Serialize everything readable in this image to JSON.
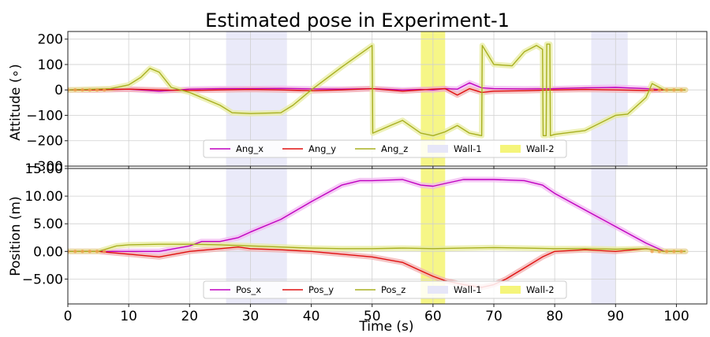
{
  "chart_data": [
    {
      "type": "line",
      "title": "Estimated pose in Experiment-1",
      "xlabel": "",
      "ylabel": "Attitude (∘)",
      "xlim": [
        0,
        105
      ],
      "ylim": [
        -300,
        230
      ],
      "xticks": [
        0,
        10,
        20,
        30,
        40,
        50,
        60,
        70,
        80,
        90,
        100
      ],
      "yticks": [
        200,
        100,
        0,
        -100,
        -200,
        -300
      ],
      "ytick_labels": [
        "200",
        "100",
        "0",
        "−100",
        "−200",
        "−300"
      ],
      "shaded_regions": [
        {
          "name": "Wall-1",
          "x": [
            26,
            36
          ],
          "color": "#e6e6f8"
        },
        {
          "name": "Wall-1",
          "x": [
            86,
            92
          ],
          "color": "#e6e6f8"
        },
        {
          "name": "Wall-2",
          "x": [
            58,
            62
          ],
          "color": "#f5f57a"
        }
      ],
      "legend": {
        "placement": "lower-center",
        "entries": [
          {
            "label": "Ang_x",
            "color": "#c000c0",
            "kind": "line"
          },
          {
            "label": "Ang_y",
            "color": "#e01010",
            "kind": "line"
          },
          {
            "label": "Ang_z",
            "color": "#a8b020",
            "kind": "line"
          },
          {
            "label": "Wall-1",
            "color": "#e6e6f8",
            "kind": "patch"
          },
          {
            "label": "Wall-2",
            "color": "#f5f57a",
            "kind": "patch"
          }
        ]
      },
      "series": [
        {
          "name": "Ang_x",
          "color": "#c000c0",
          "band_color": "#f2b8f2",
          "x": [
            0,
            5,
            10,
            15,
            20,
            25,
            30,
            35,
            40,
            45,
            50,
            55,
            58,
            60,
            62,
            64,
            66,
            68,
            70,
            75,
            80,
            85,
            90,
            95,
            98,
            101.5
          ],
          "y": [
            0,
            2,
            3,
            -5,
            3,
            5,
            5,
            6,
            4,
            3,
            5,
            0,
            2,
            0,
            5,
            3,
            28,
            8,
            5,
            4,
            5,
            8,
            10,
            5,
            0,
            0
          ]
        },
        {
          "name": "Ang_y",
          "color": "#e01010",
          "band_color": "#f2b0b0",
          "x": [
            0,
            5,
            10,
            15,
            20,
            25,
            30,
            35,
            40,
            45,
            50,
            55,
            58,
            60,
            62,
            64,
            66,
            68,
            70,
            75,
            80,
            85,
            90,
            95,
            98,
            101.5
          ],
          "y": [
            0,
            0,
            3,
            0,
            -2,
            0,
            2,
            0,
            -3,
            0,
            5,
            -5,
            0,
            3,
            5,
            -20,
            5,
            -10,
            -5,
            -3,
            0,
            2,
            0,
            -2,
            0,
            0
          ]
        },
        {
          "name": "Ang_z",
          "color": "#a8b020",
          "band_color": "#e8eca0",
          "x": [
            0,
            7,
            10,
            12,
            13.5,
            15,
            17,
            20,
            25,
            27,
            30,
            35,
            37,
            40,
            45,
            50,
            50.1,
            53,
            55,
            58,
            60,
            62,
            64,
            66,
            68,
            68.1,
            70,
            73,
            75,
            77,
            78,
            78.1,
            78.6,
            78.7,
            79.2,
            79.3,
            80,
            85,
            90,
            92,
            95,
            96,
            98,
            101.5
          ],
          "y": [
            0,
            5,
            20,
            50,
            85,
            70,
            10,
            -10,
            -60,
            -90,
            -93,
            -90,
            -60,
            0,
            90,
            175,
            -170,
            -140,
            -120,
            -170,
            -180,
            -165,
            -140,
            -170,
            -180,
            175,
            100,
            95,
            150,
            175,
            160,
            -180,
            -180,
            180,
            180,
            -180,
            -175,
            -160,
            -100,
            -95,
            -30,
            25,
            0,
            0
          ]
        }
      ]
    },
    {
      "type": "line",
      "title": "",
      "xlabel": "Time (s)",
      "ylabel": "Position (m)",
      "xlim": [
        0,
        105
      ],
      "ylim": [
        -9.5,
        15
      ],
      "xticks": [
        0,
        10,
        20,
        30,
        40,
        50,
        60,
        70,
        80,
        90,
        100
      ],
      "yticks": [
        15,
        10,
        5,
        0,
        -5
      ],
      "ytick_labels": [
        "15.00",
        "10.00",
        "5.00",
        "0.00",
        "−5.00"
      ],
      "shaded_regions": [
        {
          "name": "Wall-1",
          "x": [
            26,
            36
          ],
          "color": "#e6e6f8"
        },
        {
          "name": "Wall-1",
          "x": [
            86,
            90
          ],
          "color": "#e6e6f8"
        },
        {
          "name": "Wall-2",
          "x": [
            58,
            62
          ],
          "color": "#f5f57a"
        }
      ],
      "legend": {
        "placement": "lower-center",
        "entries": [
          {
            "label": "Pos_x",
            "color": "#c000c0",
            "kind": "line"
          },
          {
            "label": "Pos_y",
            "color": "#e01010",
            "kind": "line"
          },
          {
            "label": "Pos_z",
            "color": "#a8b020",
            "kind": "line"
          },
          {
            "label": "Wall-1",
            "color": "#e6e6f8",
            "kind": "patch"
          },
          {
            "label": "Wall-2",
            "color": "#f5f57a",
            "kind": "patch"
          }
        ]
      },
      "series": [
        {
          "name": "Pos_x",
          "color": "#c000c0",
          "band_color": "#f2b8f2",
          "x": [
            0,
            10,
            15,
            20,
            22,
            25,
            28,
            30,
            35,
            40,
            45,
            48,
            50,
            55,
            58,
            60,
            62,
            65,
            70,
            75,
            78,
            80,
            85,
            90,
            95,
            98,
            101.5
          ],
          "y": [
            0,
            0,
            0,
            1,
            1.8,
            1.8,
            2.5,
            3.5,
            5.8,
            9,
            12,
            12.8,
            12.8,
            13,
            12,
            11.8,
            12.3,
            13,
            13,
            12.8,
            12,
            10.5,
            7.5,
            4.5,
            1.5,
            0,
            0
          ]
        },
        {
          "name": "Pos_y",
          "color": "#e01010",
          "band_color": "#f2b0b0",
          "x": [
            0,
            5,
            10,
            15,
            20,
            25,
            28,
            30,
            35,
            40,
            45,
            50,
            55,
            58,
            60,
            62,
            65,
            68,
            70,
            72,
            75,
            78,
            80,
            85,
            90,
            95,
            98,
            101.5
          ],
          "y": [
            0,
            0,
            -0.5,
            -1,
            0,
            0.5,
            0.8,
            0.5,
            0.3,
            0,
            -0.5,
            -1,
            -2,
            -3.5,
            -4.5,
            -5.3,
            -6,
            -6.5,
            -6,
            -5,
            -3,
            -1,
            0,
            0.3,
            0,
            0.5,
            0,
            0
          ]
        },
        {
          "name": "Pos_z",
          "color": "#a8b020",
          "band_color": "#e8eca0",
          "x": [
            0,
            5,
            8,
            10,
            15,
            20,
            25,
            30,
            35,
            40,
            45,
            50,
            55,
            60,
            65,
            70,
            75,
            80,
            85,
            90,
            95,
            98,
            101.5
          ],
          "y": [
            0,
            0,
            1,
            1.2,
            1.3,
            1.3,
            1.2,
            1.0,
            0.8,
            0.6,
            0.5,
            0.5,
            0.6,
            0.5,
            0.6,
            0.7,
            0.6,
            0.5,
            0.5,
            0.4,
            0.5,
            0,
            0
          ]
        }
      ]
    }
  ]
}
